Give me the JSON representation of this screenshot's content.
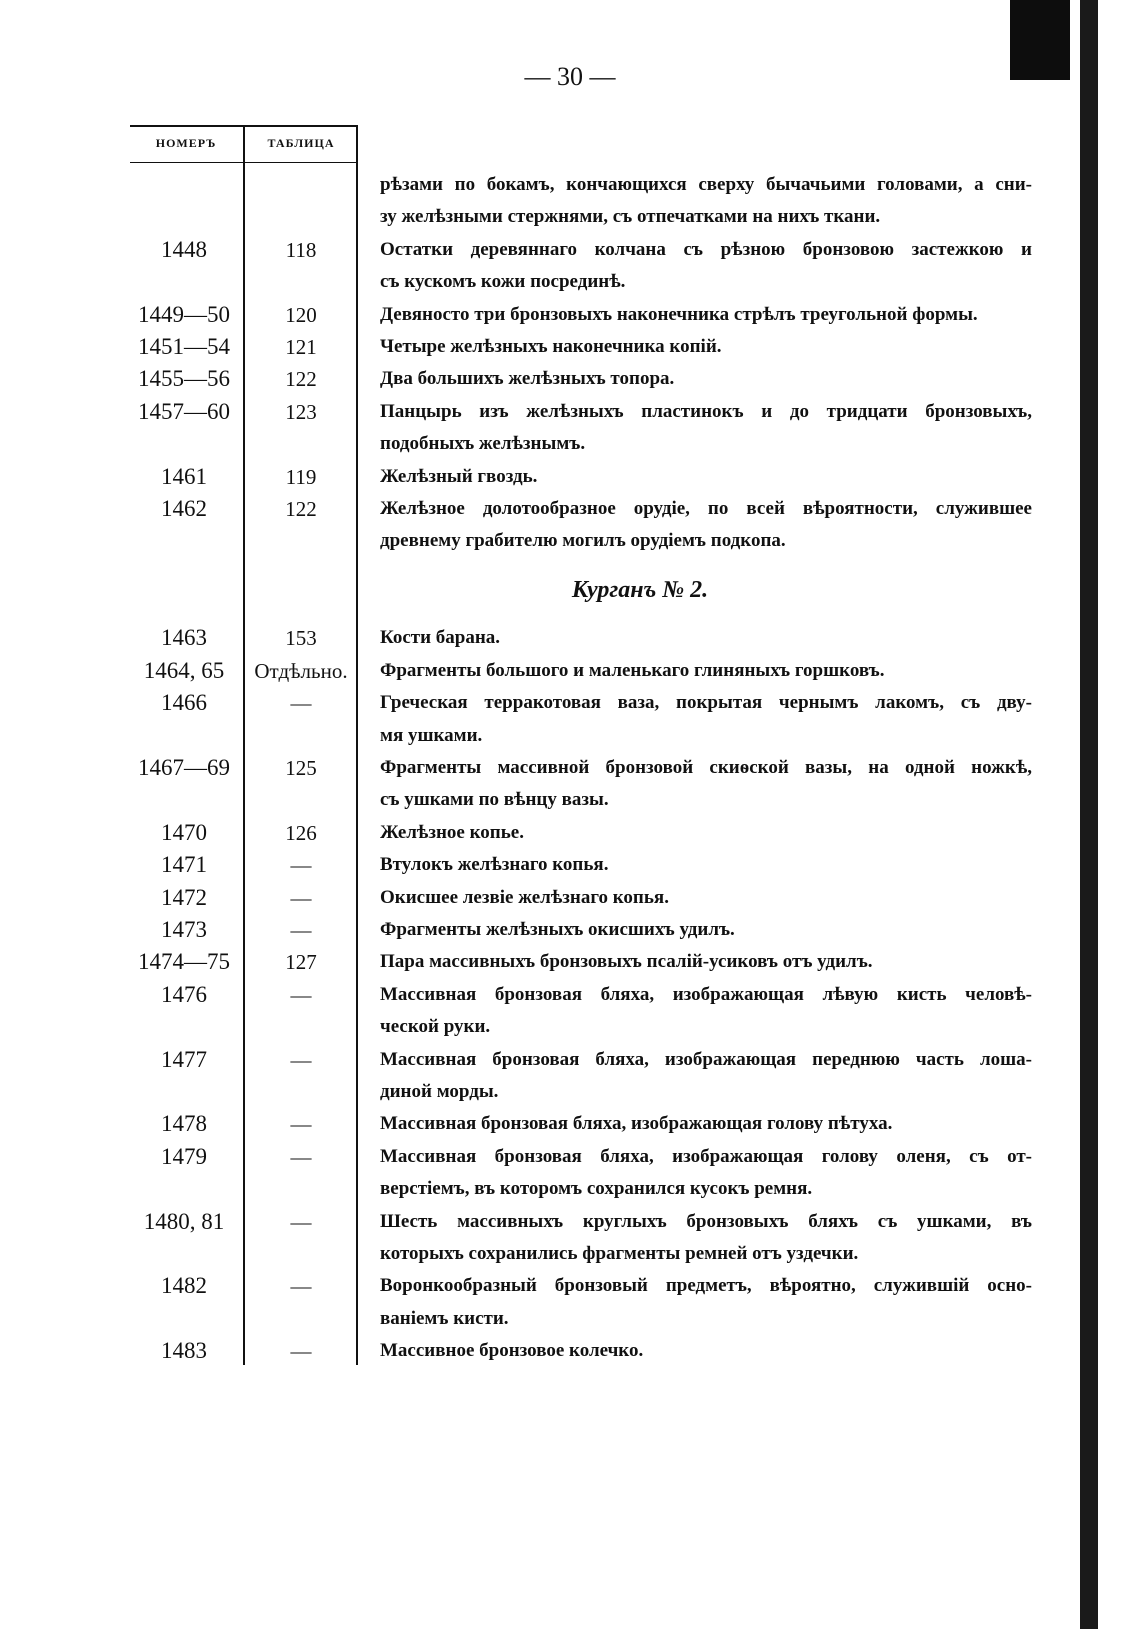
{
  "page_number": "— 30 —",
  "table": {
    "headers": [
      "НОМЕРЪ",
      "ТАБЛИЦА"
    ],
    "items": [
      {
        "lines": [
          "рѣзами по бокамъ, кончающихся сверху бычачьими головами, а сни-",
          "зу желѣзными стержнями, съ отпечатками на нихъ ткани."
        ]
      },
      {
        "number": "1448",
        "plate": "118",
        "lines": [
          "Остатки деревяннаго колчана съ рѣзною бронзовою застежкою и",
          "съ кускомъ кожи посрединѣ."
        ]
      },
      {
        "number": "1449—50",
        "plate": "120",
        "lines": [
          "Девяносто три бронзовыхъ наконечника стрѣлъ треугольной формы."
        ]
      },
      {
        "number": "1451—54",
        "plate": "121",
        "lines": [
          "Четыре желѣзныхъ наконечника копій."
        ]
      },
      {
        "number": "1455—56",
        "plate": "122",
        "lines": [
          "Два большихъ желѣзныхъ топора."
        ]
      },
      {
        "number": "1457—60",
        "plate": "123",
        "lines": [
          "Панцырь изъ желѣзныхъ пластинокъ и до тридцати бронзовыхъ,",
          "подобныхъ желѣзнымъ."
        ]
      },
      {
        "number": "1461",
        "plate": "119",
        "lines": [
          "Желѣзный гвоздь."
        ]
      },
      {
        "number": "1462",
        "plate": "122",
        "lines": [
          "Желѣзное долотообразное орудіе, по всей вѣроятности, служившее",
          "древнему грабителю могилъ орудіемъ подкопа."
        ]
      },
      {
        "heading": "Курганъ № 2."
      },
      {
        "number": "1463",
        "plate": "153",
        "lines": [
          "Кости барана."
        ]
      },
      {
        "number": "1464, 65",
        "plate": "Отдѣльно.",
        "lines": [
          "Фрагменты большого и маленькаго глиняныхъ горшковъ."
        ]
      },
      {
        "number": "1466",
        "plate": "—",
        "lines": [
          "Греческая терракотовая ваза, покрытая чернымъ лакомъ, съ дву-",
          "мя ушками."
        ]
      },
      {
        "number": "1467—69",
        "plate": "125",
        "lines": [
          "Фрагменты массивной бронзовой скиѳской вазы, на одной ножкѣ,",
          "съ ушками по вѣнцу вазы."
        ]
      },
      {
        "number": "1470",
        "plate": "126",
        "lines": [
          "Желѣзное копье."
        ]
      },
      {
        "number": "1471",
        "plate": "—",
        "lines": [
          "Втулокъ желѣзнаго копья."
        ]
      },
      {
        "number": "1472",
        "plate": "—",
        "lines": [
          "Окисшее лезвіе желѣзнаго копья."
        ]
      },
      {
        "number": "1473",
        "plate": "—",
        "lines": [
          "Фрагменты желѣзныхъ окисшихъ удилъ."
        ]
      },
      {
        "number": "1474—75",
        "plate": "127",
        "lines": [
          "Пара массивныхъ бронзовыхъ псалій-усиковъ отъ удилъ."
        ]
      },
      {
        "number": "1476",
        "plate": "—",
        "lines": [
          "Массивная бронзовая бляха, изображающая лѣвую кисть человѣ-",
          "ческой руки."
        ]
      },
      {
        "number": "1477",
        "plate": "—",
        "lines": [
          "Массивная бронзовая бляха, изображающая переднюю часть лоша-",
          "диной морды."
        ]
      },
      {
        "number": "1478",
        "plate": "—",
        "lines": [
          "Массивная бронзовая бляха, изображающая голову пѣтуха."
        ]
      },
      {
        "number": "1479",
        "plate": "—",
        "lines": [
          "Массивная бронзовая бляха, изображающая голову оленя, съ от-",
          "верстіемъ, въ которомъ сохранился кусокъ ремня."
        ]
      },
      {
        "number": "1480, 81",
        "plate": "—",
        "lines": [
          "Шесть массивныхъ круглыхъ бронзовыхъ бляхъ съ ушками, въ",
          "которыхъ сохранились фрагменты ремней отъ уздечки."
        ]
      },
      {
        "number": "1482",
        "plate": "—",
        "lines": [
          "Воронкообразный бронзовый предметъ, вѣроятно, служившій осно-",
          "ваніемъ кисти."
        ]
      },
      {
        "number": "1483",
        "plate": "—",
        "lines": [
          "Массивное бронзовое колечко."
        ]
      }
    ]
  }
}
